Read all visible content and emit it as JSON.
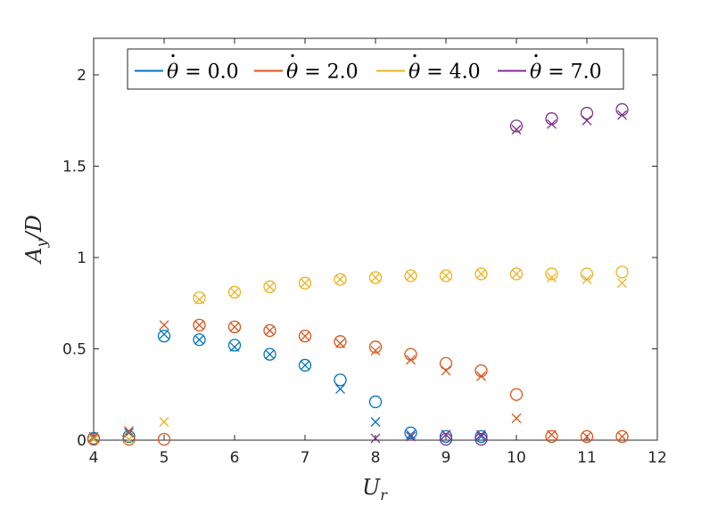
{
  "chart_data": {
    "type": "scatter",
    "xlabel": "U",
    "xlabel_sub": "r",
    "ylabel": "A",
    "ylabel_sub": "y",
    "ylabel_suffix": "/D",
    "xlim": [
      4,
      12
    ],
    "ylim": [
      0,
      2.2
    ],
    "xticks": [
      4,
      5,
      6,
      7,
      8,
      9,
      10,
      11,
      12
    ],
    "yticks": [
      0,
      0.5,
      1,
      1.5,
      2
    ],
    "ytick_labels": [
      "0",
      "0.5",
      "1",
      "1.5",
      "2"
    ],
    "grid": false,
    "legend_position": "top, horizontal",
    "marker_legend": "circle and x markers",
    "series": [
      {
        "name": "θ̇ = 0.0",
        "label_var": "θ",
        "label_value": "= 0.0",
        "color": "#0072BD",
        "x": [
          4,
          4.5,
          5,
          5.5,
          6,
          6.5,
          7,
          7.5,
          8,
          8.5,
          9,
          9.5
        ],
        "circle": [
          0.01,
          0.02,
          0.57,
          0.55,
          0.52,
          0.47,
          0.41,
          0.33,
          0.21,
          0.04,
          0.02,
          0.02
        ],
        "cross": [
          0.01,
          0.04,
          0.58,
          0.55,
          0.51,
          0.47,
          0.41,
          0.28,
          0.1,
          0.03,
          0.03,
          0.02
        ]
      },
      {
        "name": "θ̇ = 2.0",
        "label_var": "θ",
        "label_value": "= 2.0",
        "color": "#D95319",
        "x": [
          4,
          4.5,
          5,
          5.5,
          6,
          6.5,
          7,
          7.5,
          8,
          8.5,
          9,
          9.5,
          10,
          10.5,
          11,
          11.5
        ],
        "circle": [
          0.005,
          0.005,
          0.005,
          0.63,
          0.62,
          0.6,
          0.57,
          0.54,
          0.51,
          0.47,
          0.42,
          0.38,
          0.25,
          0.02,
          0.02,
          0.02
        ],
        "cross": [
          0.02,
          0.05,
          0.63,
          0.63,
          0.62,
          0.6,
          0.57,
          0.53,
          0.49,
          0.44,
          0.38,
          0.35,
          0.12,
          0.03,
          0.02,
          0.02
        ]
      },
      {
        "name": "θ̇ = 4.0",
        "label_var": "θ",
        "label_value": "= 4.0",
        "color": "#EDB120",
        "x": [
          4,
          4.5,
          5,
          5.5,
          6,
          6.5,
          7,
          7.5,
          8,
          8.5,
          9,
          9.5,
          10,
          10.5,
          11,
          11.5
        ],
        "circle": [
          null,
          null,
          null,
          0.78,
          0.81,
          0.84,
          0.86,
          0.88,
          0.89,
          0.9,
          0.9,
          0.91,
          0.91,
          0.91,
          0.91,
          0.92
        ],
        "cross": [
          0.005,
          0.005,
          0.1,
          0.77,
          0.81,
          0.84,
          0.86,
          0.88,
          0.89,
          0.9,
          0.9,
          0.91,
          0.91,
          0.89,
          0.88,
          0.86
        ]
      },
      {
        "name": "θ̇ = 7.0",
        "label_var": "θ",
        "label_value": "= 7.0",
        "color": "#7E2F8E",
        "x": [
          8,
          8.5,
          9,
          9.5,
          10,
          10.5,
          11,
          11.5
        ],
        "circle": [
          null,
          null,
          0.005,
          0.005,
          1.72,
          1.76,
          1.79,
          1.81
        ],
        "cross": [
          0.01,
          0.02,
          0.03,
          0.03,
          1.7,
          1.73,
          1.75,
          1.78
        ]
      }
    ]
  }
}
